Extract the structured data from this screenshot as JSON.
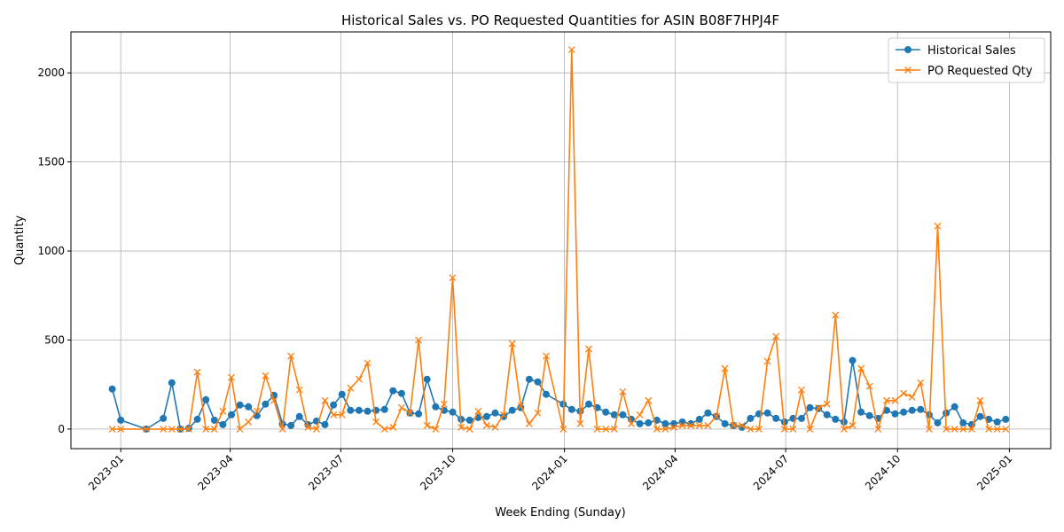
{
  "chart_data": {
    "type": "line",
    "title": "Historical Sales vs. PO Requested Quantities for ASIN B08F7HPJ4F",
    "xlabel": "Week Ending (Sunday)",
    "ylabel": "Quantity",
    "grid": true,
    "legend_position": "top-right",
    "xlim": [
      "2022-11-21",
      "2025-02-04"
    ],
    "ylim": [
      -110,
      2230
    ],
    "x_ticks": [
      {
        "date": "2023-01-01",
        "label": "2023-01"
      },
      {
        "date": "2023-04-01",
        "label": "2023-04"
      },
      {
        "date": "2023-07-01",
        "label": "2023-07"
      },
      {
        "date": "2023-10-01",
        "label": "2023-10"
      },
      {
        "date": "2024-01-01",
        "label": "2024-01"
      },
      {
        "date": "2024-04-01",
        "label": "2024-04"
      },
      {
        "date": "2024-07-01",
        "label": "2024-07"
      },
      {
        "date": "2024-10-01",
        "label": "2024-10"
      },
      {
        "date": "2025-01-01",
        "label": "2025-01"
      }
    ],
    "y_ticks": [
      0,
      500,
      1000,
      1500,
      2000
    ],
    "series": [
      {
        "name": "Historical Sales",
        "color": "#1f77b4",
        "marker": "circle",
        "x": [
          "2022-12-25",
          "2023-01-01",
          "2023-01-22",
          "2023-02-05",
          "2023-02-12",
          "2023-02-19",
          "2023-02-26",
          "2023-03-05",
          "2023-03-12",
          "2023-03-19",
          "2023-03-26",
          "2023-04-02",
          "2023-04-09",
          "2023-04-16",
          "2023-04-23",
          "2023-04-30",
          "2023-05-07",
          "2023-05-14",
          "2023-05-21",
          "2023-05-28",
          "2023-06-04",
          "2023-06-11",
          "2023-06-18",
          "2023-06-25",
          "2023-07-02",
          "2023-07-09",
          "2023-07-16",
          "2023-07-23",
          "2023-07-30",
          "2023-08-06",
          "2023-08-13",
          "2023-08-20",
          "2023-08-27",
          "2023-09-03",
          "2023-09-10",
          "2023-09-17",
          "2023-09-24",
          "2023-10-01",
          "2023-10-08",
          "2023-10-15",
          "2023-10-22",
          "2023-10-29",
          "2023-11-05",
          "2023-11-12",
          "2023-11-19",
          "2023-11-26",
          "2023-12-03",
          "2023-12-10",
          "2023-12-17",
          "2023-12-31",
          "2024-01-07",
          "2024-01-14",
          "2024-01-21",
          "2024-01-28",
          "2024-02-04",
          "2024-02-11",
          "2024-02-18",
          "2024-02-25",
          "2024-03-03",
          "2024-03-10",
          "2024-03-17",
          "2024-03-24",
          "2024-03-31",
          "2024-04-07",
          "2024-04-14",
          "2024-04-21",
          "2024-04-28",
          "2024-05-05",
          "2024-05-12",
          "2024-05-19",
          "2024-05-26",
          "2024-06-02",
          "2024-06-09",
          "2024-06-16",
          "2024-06-23",
          "2024-06-30",
          "2024-07-07",
          "2024-07-14",
          "2024-07-21",
          "2024-07-28",
          "2024-08-04",
          "2024-08-11",
          "2024-08-18",
          "2024-08-25",
          "2024-09-01",
          "2024-09-08",
          "2024-09-15",
          "2024-09-22",
          "2024-09-29",
          "2024-10-06",
          "2024-10-13",
          "2024-10-20",
          "2024-10-27",
          "2024-11-03",
          "2024-11-10",
          "2024-11-17",
          "2024-11-24",
          "2024-12-01",
          "2024-12-08",
          "2024-12-15",
          "2024-12-22",
          "2024-12-29"
        ],
        "values": [
          225,
          50,
          0,
          60,
          260,
          0,
          5,
          55,
          165,
          50,
          25,
          80,
          135,
          125,
          75,
          140,
          190,
          30,
          20,
          70,
          25,
          45,
          25,
          135,
          195,
          105,
          105,
          100,
          105,
          110,
          215,
          200,
          90,
          85,
          280,
          125,
          105,
          95,
          55,
          50,
          65,
          70,
          90,
          70,
          105,
          120,
          280,
          265,
          195,
          140,
          110,
          100,
          140,
          120,
          95,
          80,
          80,
          55,
          30,
          35,
          50,
          30,
          30,
          40,
          30,
          55,
          90,
          70,
          30,
          20,
          10,
          60,
          85,
          90,
          60,
          40,
          60,
          60,
          120,
          115,
          80,
          55,
          40,
          385,
          95,
          75,
          60,
          105,
          85,
          95,
          105,
          110,
          80,
          35,
          90,
          125,
          35,
          25,
          70,
          55,
          40,
          55
        ]
      },
      {
        "name": "PO Requested Qty",
        "color": "#ff7f0e",
        "marker": "x",
        "x": [
          "2022-12-25",
          "2023-01-01",
          "2023-01-22",
          "2023-02-05",
          "2023-02-12",
          "2023-02-19",
          "2023-02-26",
          "2023-03-05",
          "2023-03-12",
          "2023-03-19",
          "2023-03-26",
          "2023-04-02",
          "2023-04-09",
          "2023-04-16",
          "2023-04-23",
          "2023-04-30",
          "2023-05-07",
          "2023-05-14",
          "2023-05-21",
          "2023-05-28",
          "2023-06-04",
          "2023-06-11",
          "2023-06-18",
          "2023-06-25",
          "2023-07-02",
          "2023-07-09",
          "2023-07-16",
          "2023-07-23",
          "2023-07-30",
          "2023-08-06",
          "2023-08-13",
          "2023-08-20",
          "2023-08-27",
          "2023-09-03",
          "2023-09-10",
          "2023-09-17",
          "2023-09-24",
          "2023-10-01",
          "2023-10-08",
          "2023-10-15",
          "2023-10-22",
          "2023-10-29",
          "2023-11-05",
          "2023-11-12",
          "2023-11-19",
          "2023-11-26",
          "2023-12-03",
          "2023-12-10",
          "2023-12-17",
          "2023-12-31",
          "2024-01-07",
          "2024-01-14",
          "2024-01-21",
          "2024-01-28",
          "2024-02-04",
          "2024-02-11",
          "2024-02-18",
          "2024-02-25",
          "2024-03-03",
          "2024-03-10",
          "2024-03-17",
          "2024-03-24",
          "2024-03-31",
          "2024-04-07",
          "2024-04-14",
          "2024-04-21",
          "2024-04-28",
          "2024-05-05",
          "2024-05-12",
          "2024-05-19",
          "2024-05-26",
          "2024-06-02",
          "2024-06-09",
          "2024-06-16",
          "2024-06-23",
          "2024-06-30",
          "2024-07-07",
          "2024-07-14",
          "2024-07-21",
          "2024-07-28",
          "2024-08-04",
          "2024-08-11",
          "2024-08-18",
          "2024-08-25",
          "2024-09-01",
          "2024-09-08",
          "2024-09-15",
          "2024-09-22",
          "2024-09-29",
          "2024-10-06",
          "2024-10-13",
          "2024-10-20",
          "2024-10-27",
          "2024-11-03",
          "2024-11-10",
          "2024-11-17",
          "2024-11-24",
          "2024-12-01",
          "2024-12-08",
          "2024-12-15",
          "2024-12-22",
          "2024-12-29"
        ],
        "values": [
          0,
          0,
          0,
          0,
          0,
          0,
          0,
          320,
          0,
          0,
          100,
          290,
          0,
          40,
          100,
          300,
          160,
          0,
          410,
          220,
          10,
          0,
          160,
          80,
          80,
          230,
          280,
          370,
          40,
          0,
          10,
          120,
          90,
          500,
          20,
          0,
          140,
          850,
          10,
          0,
          100,
          20,
          10,
          80,
          480,
          130,
          30,
          90,
          410,
          0,
          2130,
          30,
          450,
          0,
          0,
          0,
          210,
          30,
          80,
          160,
          0,
          0,
          10,
          20,
          20,
          20,
          20,
          70,
          340,
          20,
          20,
          0,
          0,
          380,
          520,
          0,
          0,
          220,
          0,
          120,
          140,
          640,
          0,
          20,
          340,
          240,
          0,
          160,
          160,
          200,
          180,
          260,
          0,
          1140,
          0,
          0,
          0,
          0,
          160,
          0,
          0,
          0
        ]
      }
    ]
  }
}
